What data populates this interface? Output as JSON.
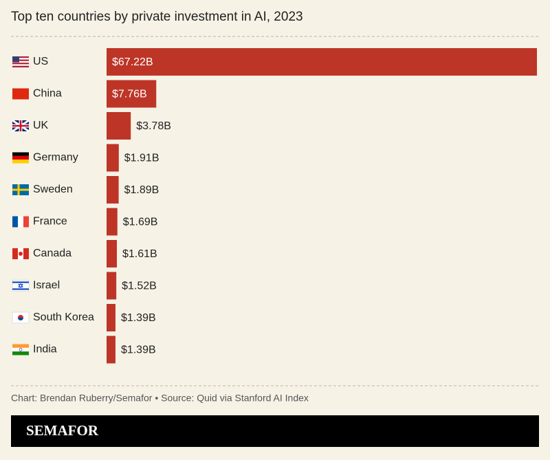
{
  "chart_data": {
    "type": "bar",
    "orientation": "horizontal",
    "title": "Top ten countries by private investment in AI, 2023",
    "categories": [
      "US",
      "China",
      "UK",
      "Germany",
      "Sweden",
      "France",
      "Canada",
      "Israel",
      "South Korea",
      "India"
    ],
    "values": [
      67.22,
      7.76,
      3.78,
      1.91,
      1.89,
      1.69,
      1.61,
      1.52,
      1.39,
      1.39
    ],
    "value_labels": [
      "$67.22B",
      "$7.76B",
      "$3.78B",
      "$1.91B",
      "$1.89B",
      "$1.69B",
      "$1.61B",
      "$1.52B",
      "$1.39B",
      "$1.39B"
    ],
    "color": "#bd3527",
    "source": "Chart: Brendan Ruberry/Semafor • Source: Quid via Stanford AI Index",
    "brand": "SEMAFOR"
  }
}
